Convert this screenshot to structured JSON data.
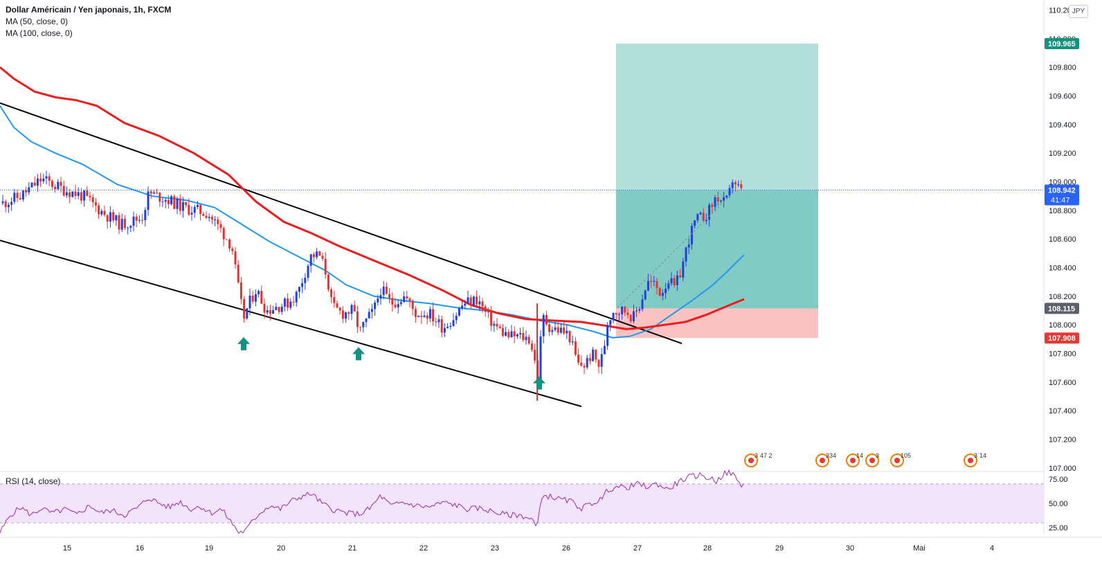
{
  "legend": {
    "title": "Dollar Américain / Yen japonais, 1h, FXCM",
    "ma50": "MA (50, close, 0)",
    "ma100": "MA (100, close, 0)",
    "rsi": "RSI (14, close)"
  },
  "currency_button": "JPY",
  "price_tags": {
    "target": "109.965",
    "last": "108.942",
    "countdown": "41:47",
    "entry": "108.115",
    "stop": "107.908"
  },
  "colors": {
    "bull": "#2040e0",
    "bear": "#e83030",
    "ma50": "#2196f3",
    "ma100": "#f01c1c",
    "trend": "#000000",
    "target_zone": "#b2dfdb",
    "stop_zone": "#fbc2c2",
    "rsi": "#9c27b0",
    "rsi_band": "#f2e4fb",
    "arrow": "#14917f"
  },
  "chart_data": {
    "type": "candlestick",
    "title": "Dollar Américain / Yen japonais, 1h, FXCM",
    "y_axis": {
      "ticks": [
        "110.200",
        "110.000",
        "109.800",
        "109.600",
        "109.400",
        "109.200",
        "109.000",
        "108.800",
        "108.600",
        "108.400",
        "108.200",
        "108.000",
        "107.800",
        "107.600",
        "107.400",
        "107.200",
        "107.000"
      ],
      "range": [
        106.98,
        110.27
      ]
    },
    "x_axis": {
      "ticks": [
        {
          "label": "15",
          "t": 97
        },
        {
          "label": "16",
          "t": 202
        },
        {
          "label": "19",
          "t": 302
        },
        {
          "label": "20",
          "t": 406
        },
        {
          "label": "21",
          "t": 509
        },
        {
          "label": "22",
          "t": 612
        },
        {
          "label": "23",
          "t": 715
        },
        {
          "label": "26",
          "t": 818
        },
        {
          "label": "27",
          "t": 921
        },
        {
          "label": "28",
          "t": 1022
        },
        {
          "label": "29",
          "t": 1126
        },
        {
          "label": "30",
          "t": 1228
        },
        {
          "label": "Mai",
          "t": 1328
        },
        {
          "label": "4",
          "t": 1433
        }
      ],
      "range": [
        0,
        1508
      ]
    },
    "price_path": [
      [
        4,
        108.85
      ],
      [
        30,
        108.9
      ],
      [
        60,
        109.02
      ],
      [
        90,
        108.95
      ],
      [
        120,
        108.9
      ],
      [
        150,
        108.78
      ],
      [
        175,
        108.7
      ],
      [
        205,
        108.75
      ],
      [
        215,
        108.92
      ],
      [
        240,
        108.88
      ],
      [
        265,
        108.82
      ],
      [
        300,
        108.78
      ],
      [
        320,
        108.66
      ],
      [
        335,
        108.55
      ],
      [
        342,
        108.32
      ],
      [
        348,
        108.15
      ],
      [
        352,
        108.05
      ],
      [
        360,
        108.15
      ],
      [
        370,
        108.25
      ],
      [
        385,
        108.1
      ],
      [
        400,
        108.13
      ],
      [
        415,
        108.15
      ],
      [
        430,
        108.22
      ],
      [
        440,
        108.36
      ],
      [
        450,
        108.49
      ],
      [
        462,
        108.48
      ],
      [
        472,
        108.35
      ],
      [
        480,
        108.12
      ],
      [
        495,
        108.08
      ],
      [
        510,
        108.1
      ],
      [
        520,
        107.95
      ],
      [
        528,
        108.02
      ],
      [
        540,
        108.1
      ],
      [
        550,
        108.25
      ],
      [
        565,
        108.15
      ],
      [
        585,
        108.2
      ],
      [
        600,
        108.08
      ],
      [
        620,
        108.08
      ],
      [
        640,
        107.98
      ],
      [
        655,
        108.05
      ],
      [
        670,
        108.15
      ],
      [
        690,
        108.18
      ],
      [
        705,
        108.05
      ],
      [
        720,
        107.97
      ],
      [
        735,
        107.92
      ],
      [
        750,
        107.92
      ],
      [
        765,
        107.9
      ],
      [
        772,
        107.78
      ],
      [
        776,
        107.55
      ],
      [
        780,
        107.85
      ],
      [
        785,
        108.05
      ],
      [
        795,
        107.98
      ],
      [
        810,
        107.96
      ],
      [
        822,
        107.93
      ],
      [
        835,
        107.72
      ],
      [
        845,
        107.72
      ],
      [
        855,
        107.8
      ],
      [
        865,
        107.72
      ],
      [
        872,
        107.8
      ],
      [
        876,
        108.0
      ],
      [
        885,
        108.1
      ],
      [
        895,
        108.1
      ],
      [
        905,
        108.1
      ],
      [
        915,
        108.05
      ],
      [
        925,
        108.15
      ],
      [
        935,
        108.3
      ],
      [
        945,
        108.28
      ],
      [
        955,
        108.22
      ],
      [
        965,
        108.32
      ],
      [
        975,
        108.25
      ],
      [
        985,
        108.4
      ],
      [
        995,
        108.6
      ],
      [
        1005,
        108.73
      ],
      [
        1015,
        108.75
      ],
      [
        1025,
        108.8
      ],
      [
        1035,
        108.9
      ],
      [
        1045,
        108.85
      ],
      [
        1052,
        108.87
      ],
      [
        1058,
        109.02
      ],
      [
        1064,
        108.98
      ],
      [
        1070,
        108.93
      ],
      [
        1075,
        108.94
      ]
    ],
    "ma50": [
      [
        0,
        109.53
      ],
      [
        20,
        109.38
      ],
      [
        45,
        109.28
      ],
      [
        80,
        109.2
      ],
      [
        120,
        109.12
      ],
      [
        170,
        108.98
      ],
      [
        220,
        108.9
      ],
      [
        270,
        108.87
      ],
      [
        310,
        108.82
      ],
      [
        350,
        108.7
      ],
      [
        390,
        108.58
      ],
      [
        430,
        108.48
      ],
      [
        470,
        108.38
      ],
      [
        500,
        108.28
      ],
      [
        540,
        108.2
      ],
      [
        580,
        108.17
      ],
      [
        620,
        108.15
      ],
      [
        660,
        108.12
      ],
      [
        700,
        108.1
      ],
      [
        740,
        108.07
      ],
      [
        780,
        108.03
      ],
      [
        820,
        108.0
      ],
      [
        860,
        107.95
      ],
      [
        885,
        107.91
      ],
      [
        910,
        107.92
      ],
      [
        940,
        107.97
      ],
      [
        970,
        108.07
      ],
      [
        1000,
        108.17
      ],
      [
        1030,
        108.28
      ],
      [
        1050,
        108.37
      ],
      [
        1075,
        108.49
      ]
    ],
    "ma100": [
      [
        0,
        109.8
      ],
      [
        20,
        109.72
      ],
      [
        50,
        109.63
      ],
      [
        80,
        109.59
      ],
      [
        110,
        109.57
      ],
      [
        140,
        109.53
      ],
      [
        180,
        109.41
      ],
      [
        230,
        109.32
      ],
      [
        280,
        109.2
      ],
      [
        330,
        109.05
      ],
      [
        370,
        108.86
      ],
      [
        410,
        108.72
      ],
      [
        450,
        108.64
      ],
      [
        490,
        108.55
      ],
      [
        540,
        108.45
      ],
      [
        590,
        108.35
      ],
      [
        640,
        108.24
      ],
      [
        680,
        108.14
      ],
      [
        720,
        108.08
      ],
      [
        760,
        108.04
      ],
      [
        800,
        108.03
      ],
      [
        840,
        108.02
      ],
      [
        880,
        107.99
      ],
      [
        905,
        107.97
      ],
      [
        930,
        107.98
      ],
      [
        960,
        108.0
      ],
      [
        990,
        108.02
      ],
      [
        1020,
        108.07
      ],
      [
        1050,
        108.13
      ],
      [
        1075,
        108.18
      ]
    ],
    "trendlines": [
      {
        "from": [
          0,
          109.55
        ],
        "to": [
          985,
          107.87
        ]
      },
      {
        "from": [
          0,
          108.59
        ],
        "to": [
          840,
          107.43
        ]
      }
    ],
    "position": {
      "start": 890,
      "end": 1182,
      "target": 109.965,
      "entry": 108.115,
      "stop": 107.908
    },
    "current_price": 108.942,
    "support_arrows": [
      352,
      518,
      779
    ],
    "rsi": {
      "label": "RSI (14, close)",
      "ticks": [
        "75.00",
        "50.00",
        "25.00"
      ],
      "range": [
        18,
        82
      ],
      "band": [
        30,
        70
      ],
      "values": [
        [
          0,
          20
        ],
        [
          15,
          38
        ],
        [
          30,
          46
        ],
        [
          45,
          38
        ],
        [
          60,
          45
        ],
        [
          75,
          40
        ],
        [
          95,
          44
        ],
        [
          110,
          38
        ],
        [
          130,
          48
        ],
        [
          145,
          40
        ],
        [
          160,
          43
        ],
        [
          180,
          38
        ],
        [
          200,
          46
        ],
        [
          215,
          56
        ],
        [
          230,
          50
        ],
        [
          245,
          46
        ],
        [
          260,
          52
        ],
        [
          275,
          44
        ],
        [
          290,
          47
        ],
        [
          305,
          40
        ],
        [
          320,
          44
        ],
        [
          335,
          30
        ],
        [
          345,
          20
        ],
        [
          355,
          22
        ],
        [
          365,
          32
        ],
        [
          375,
          40
        ],
        [
          390,
          48
        ],
        [
          405,
          44
        ],
        [
          420,
          52
        ],
        [
          435,
          57
        ],
        [
          450,
          60
        ],
        [
          465,
          50
        ],
        [
          480,
          44
        ],
        [
          500,
          40
        ],
        [
          520,
          39
        ],
        [
          535,
          45
        ],
        [
          550,
          58
        ],
        [
          565,
          47
        ],
        [
          580,
          51
        ],
        [
          600,
          48
        ],
        [
          620,
          46
        ],
        [
          640,
          51
        ],
        [
          660,
          48
        ],
        [
          675,
          44
        ],
        [
          690,
          45
        ],
        [
          705,
          43
        ],
        [
          720,
          40
        ],
        [
          735,
          38
        ],
        [
          750,
          38
        ],
        [
          760,
          36
        ],
        [
          770,
          33
        ],
        [
          776,
          23
        ],
        [
          782,
          58
        ],
        [
          795,
          57
        ],
        [
          810,
          54
        ],
        [
          825,
          52
        ],
        [
          840,
          45
        ],
        [
          855,
          50
        ],
        [
          870,
          55
        ],
        [
          878,
          64
        ],
        [
          890,
          67
        ],
        [
          905,
          66
        ],
        [
          920,
          70
        ],
        [
          935,
          67
        ],
        [
          950,
          70
        ],
        [
          965,
          64
        ],
        [
          980,
          72
        ],
        [
          995,
          77
        ],
        [
          1010,
          79
        ],
        [
          1025,
          76
        ],
        [
          1035,
          73
        ],
        [
          1045,
          80
        ],
        [
          1055,
          82
        ],
        [
          1062,
          77
        ],
        [
          1070,
          68
        ],
        [
          1075,
          70
        ]
      ]
    },
    "event_icons": [
      {
        "x": 1085,
        "label": "3˙47 2"
      },
      {
        "x": 1188,
        "label": "334"
      },
      {
        "x": 1232,
        "label": "14"
      },
      {
        "x": 1260,
        "label": "3"
      },
      {
        "x": 1296,
        "label": "105"
      },
      {
        "x": 1402,
        "label": "3˙14"
      }
    ]
  }
}
